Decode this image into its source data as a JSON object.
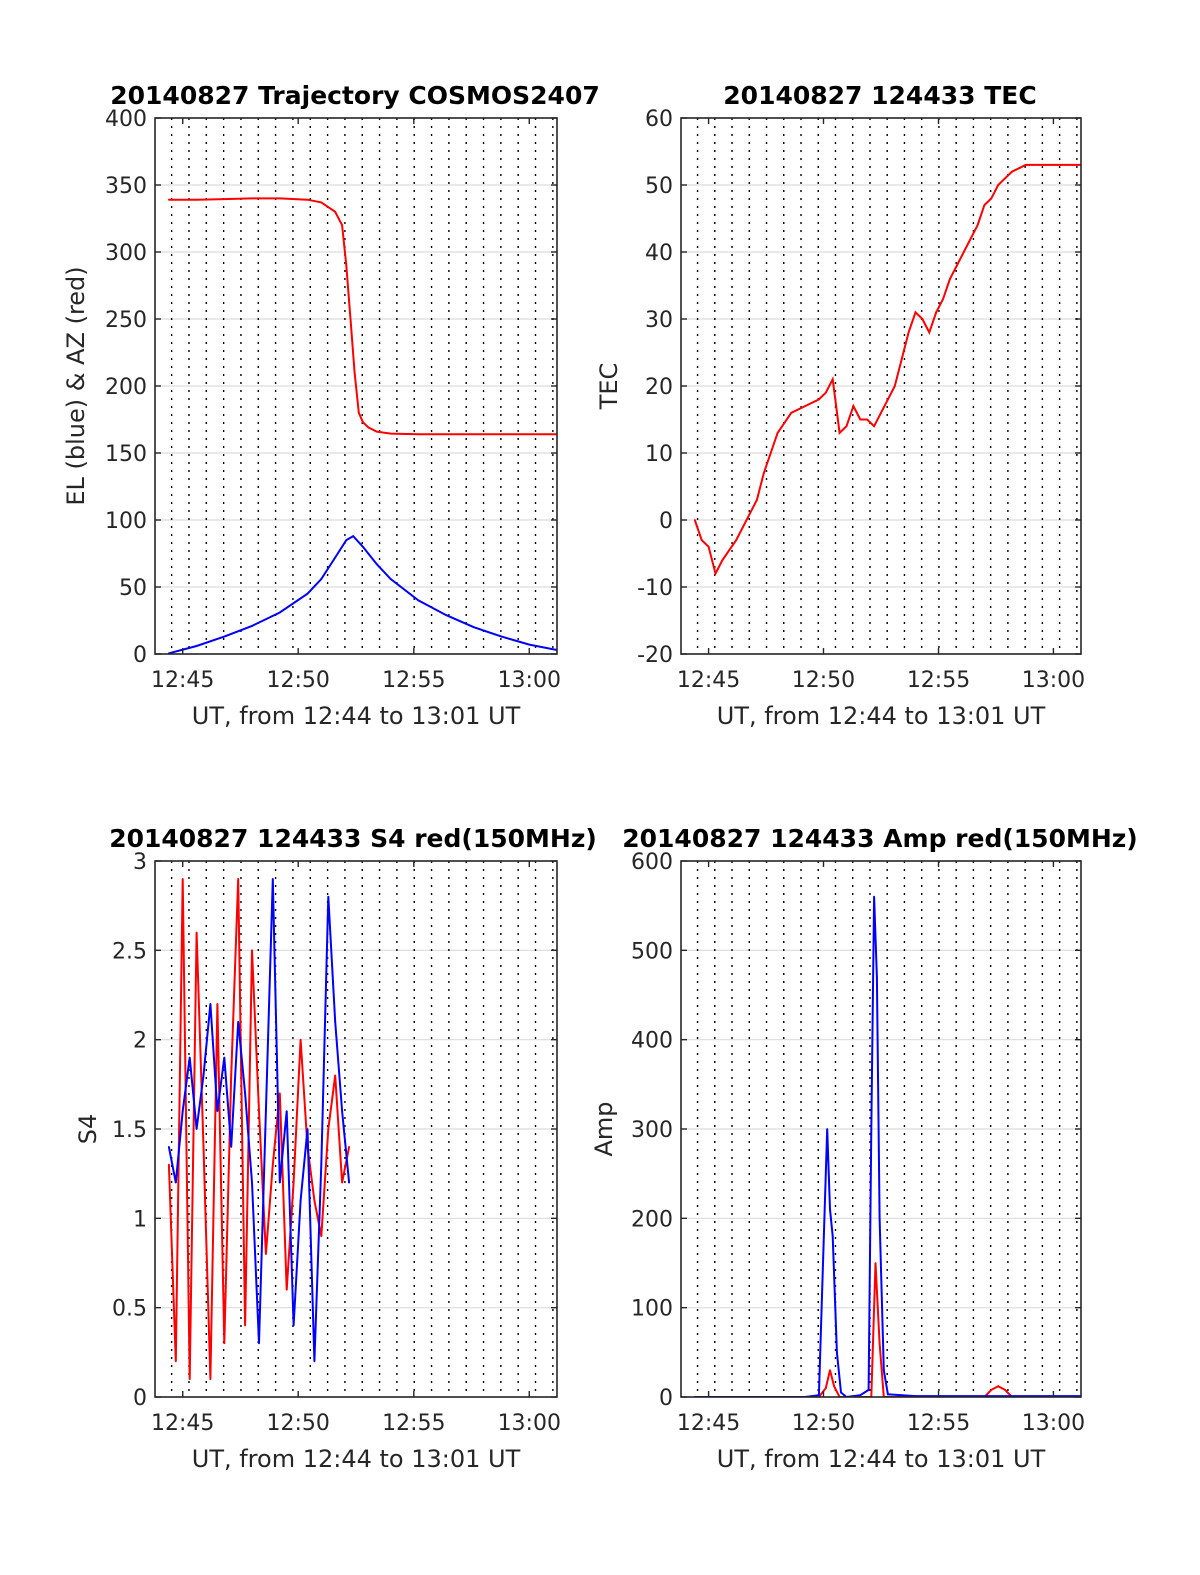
{
  "chart_data": [
    {
      "id": "traj",
      "type": "line",
      "title": "20140827 Trajectory COSMOS2407",
      "xlabel": "UT, from 12:44 to 13:01 UT",
      "ylabel": "EL (blue) & AZ (red)",
      "xlim": [
        12.73,
        13.02
      ],
      "ylim": [
        0,
        400
      ],
      "xticks": [
        {
          "v": 12.75,
          "label": "12:45"
        },
        {
          "v": 12.8333,
          "label": "12:50"
        },
        {
          "v": 12.9167,
          "label": "12:55"
        },
        {
          "v": 13.0,
          "label": "13:00"
        }
      ],
      "yticks": [
        0,
        50,
        100,
        150,
        200,
        250,
        300,
        350,
        400
      ],
      "grid": true,
      "series": [
        {
          "color": "#ff0000",
          "x": [
            12.74,
            12.76,
            12.78,
            12.8,
            12.82,
            12.84,
            12.85,
            12.86,
            12.865,
            12.868,
            12.871,
            12.874,
            12.877,
            12.88,
            12.884,
            12.89,
            12.9,
            12.92,
            12.95,
            12.98,
            13.02
          ],
          "y": [
            339,
            339,
            339.5,
            340,
            340,
            339,
            337,
            330,
            320,
            290,
            250,
            210,
            180,
            173,
            169,
            166,
            164.5,
            164,
            164,
            164,
            164
          ]
        },
        {
          "color": "#0000ff",
          "x": [
            12.74,
            12.76,
            12.78,
            12.8,
            12.82,
            12.84,
            12.85,
            12.86,
            12.868,
            12.873,
            12.88,
            12.89,
            12.9,
            12.92,
            12.94,
            12.96,
            12.98,
            13.0,
            13.02
          ],
          "y": [
            0.5,
            6,
            13,
            21,
            31,
            45,
            56,
            72,
            85,
            88,
            80,
            67,
            56,
            40,
            29,
            20,
            13,
            7,
            3
          ]
        }
      ]
    },
    {
      "id": "tec",
      "type": "line",
      "title": "20140827 124433 TEC",
      "xlabel": "UT, from 12:44 to 13:01 UT",
      "ylabel": "TEC",
      "xlim": [
        12.73,
        13.02
      ],
      "ylim": [
        -20,
        60
      ],
      "xticks": [
        {
          "v": 12.75,
          "label": "12:45"
        },
        {
          "v": 12.8333,
          "label": "12:50"
        },
        {
          "v": 12.9167,
          "label": "12:55"
        },
        {
          "v": 13.0,
          "label": "13:00"
        }
      ],
      "yticks": [
        -20,
        -10,
        0,
        10,
        20,
        30,
        40,
        50,
        60
      ],
      "grid": true,
      "series": [
        {
          "color": "#ff0000",
          "x": [
            12.74,
            12.745,
            12.75,
            12.755,
            12.76,
            12.77,
            12.78,
            12.785,
            12.79,
            12.8,
            12.81,
            12.82,
            12.83,
            12.835,
            12.84,
            12.845,
            12.85,
            12.855,
            12.86,
            12.865,
            12.87,
            12.875,
            12.88,
            12.885,
            12.89,
            12.895,
            12.9,
            12.905,
            12.91,
            12.915,
            12.92,
            12.925,
            12.93,
            12.935,
            12.94,
            12.945,
            12.95,
            12.955,
            12.96,
            12.965,
            12.97,
            12.975,
            12.98,
            12.985,
            12.99,
            12.995,
            13.0,
            13.005,
            13.01,
            13.015,
            13.02
          ],
          "y": [
            0,
            -3,
            -4,
            -8,
            -6,
            -3,
            1,
            3,
            7,
            13,
            16,
            17,
            18,
            19,
            21,
            13,
            14,
            17,
            15,
            15,
            14,
            16,
            18,
            20,
            24,
            28,
            31,
            30,
            28,
            31,
            33,
            36,
            38,
            40,
            42,
            44,
            47,
            48,
            50,
            51,
            52,
            52.5,
            53,
            53,
            53,
            53,
            53,
            53,
            53,
            53,
            53
          ]
        }
      ]
    },
    {
      "id": "s4",
      "type": "line",
      "title": "20140827 124433 S4 red(150MHz)",
      "xlabel": "UT, from 12:44 to 13:01 UT",
      "ylabel": "S4",
      "xlim": [
        12.73,
        13.02
      ],
      "ylim": [
        0,
        3
      ],
      "xticks": [
        {
          "v": 12.75,
          "label": "12:45"
        },
        {
          "v": 12.8333,
          "label": "12:50"
        },
        {
          "v": 12.9167,
          "label": "12:55"
        },
        {
          "v": 13.0,
          "label": "13:00"
        }
      ],
      "yticks": [
        0,
        0.5,
        1,
        1.5,
        2,
        2.5,
        3
      ],
      "grid": true,
      "series": [
        {
          "color": "#ff0000",
          "x": [
            12.74,
            12.745,
            12.75,
            12.755,
            12.76,
            12.765,
            12.77,
            12.775,
            12.78,
            12.785,
            12.79,
            12.795,
            12.8,
            12.805,
            12.81,
            12.815,
            12.82,
            12.825,
            12.83,
            12.835,
            12.84,
            12.845,
            12.85,
            12.855,
            12.86,
            12.865,
            12.87
          ],
          "y": [
            1.3,
            0.2,
            2.9,
            0.1,
            2.6,
            1.4,
            0.1,
            2.2,
            0.3,
            1.8,
            2.9,
            0.4,
            2.5,
            1.6,
            0.8,
            1.3,
            1.7,
            0.6,
            1.2,
            2.0,
            1.4,
            1.1,
            0.9,
            1.5,
            1.8,
            1.2,
            1.4
          ]
        },
        {
          "color": "#0000ff",
          "x": [
            12.74,
            12.745,
            12.75,
            12.755,
            12.76,
            12.765,
            12.77,
            12.775,
            12.78,
            12.785,
            12.79,
            12.795,
            12.8,
            12.805,
            12.81,
            12.815,
            12.82,
            12.825,
            12.83,
            12.835,
            12.84,
            12.845,
            12.85,
            12.855,
            12.86,
            12.865,
            12.87
          ],
          "y": [
            1.4,
            1.2,
            1.6,
            1.9,
            1.5,
            1.8,
            2.2,
            1.6,
            1.9,
            1.4,
            2.1,
            1.7,
            1.2,
            0.3,
            1.6,
            2.9,
            1.2,
            1.6,
            0.4,
            1.1,
            1.5,
            0.2,
            1.3,
            2.8,
            2.1,
            1.6,
            1.2
          ]
        }
      ]
    },
    {
      "id": "amp",
      "type": "line",
      "title": "20140827 124433 Amp red(150MHz)",
      "xlabel": "UT, from 12:44 to 13:01 UT",
      "ylabel": "Amp",
      "xlim": [
        12.73,
        13.02
      ],
      "ylim": [
        0,
        600
      ],
      "xticks": [
        {
          "v": 12.75,
          "label": "12:45"
        },
        {
          "v": 12.8333,
          "label": "12:50"
        },
        {
          "v": 12.9167,
          "label": "12:55"
        },
        {
          "v": 13.0,
          "label": "13:00"
        }
      ],
      "yticks": [
        0,
        100,
        200,
        300,
        400,
        500,
        600
      ],
      "grid": true,
      "series": [
        {
          "color": "#ff0000",
          "x": [
            12.74,
            12.83,
            12.835,
            12.838,
            12.841,
            12.845,
            12.85,
            12.868,
            12.871,
            12.874,
            12.877,
            12.88,
            12.95,
            12.955,
            12.96,
            12.965,
            12.97,
            13.02
          ],
          "y": [
            0,
            0,
            10,
            30,
            12,
            0,
            0,
            0,
            150,
            60,
            0,
            0,
            0,
            8,
            12,
            8,
            0,
            0
          ]
        },
        {
          "color": "#0000ff",
          "x": [
            12.74,
            12.82,
            12.83,
            12.834,
            12.836,
            12.838,
            12.84,
            12.843,
            12.846,
            12.85,
            12.86,
            12.866,
            12.868,
            12.87,
            12.872,
            12.874,
            12.877,
            12.88,
            12.9,
            13.02
          ],
          "y": [
            0,
            0,
            2,
            200,
            300,
            210,
            180,
            50,
            5,
            0,
            2,
            8,
            300,
            560,
            470,
            200,
            30,
            3,
            1,
            1
          ]
        }
      ]
    }
  ]
}
